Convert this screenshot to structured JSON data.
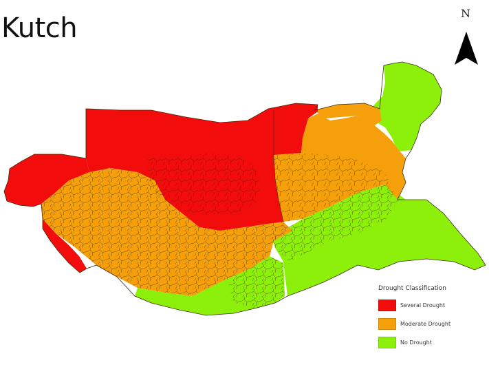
{
  "title": "Kutch",
  "north_label": "N",
  "legend": {
    "title": "Drought Classification",
    "items": [
      {
        "label": "Several Drought",
        "color": "#f20c0c"
      },
      {
        "label": "Moderate Drought",
        "color": "#f5a00a"
      },
      {
        "label": "No Drought",
        "color": "#8cf00a"
      }
    ]
  },
  "colors": {
    "severe": "#f20c0c",
    "moderate": "#f5a00a",
    "none": "#8cf00a",
    "boundary": "#3a2a10"
  }
}
